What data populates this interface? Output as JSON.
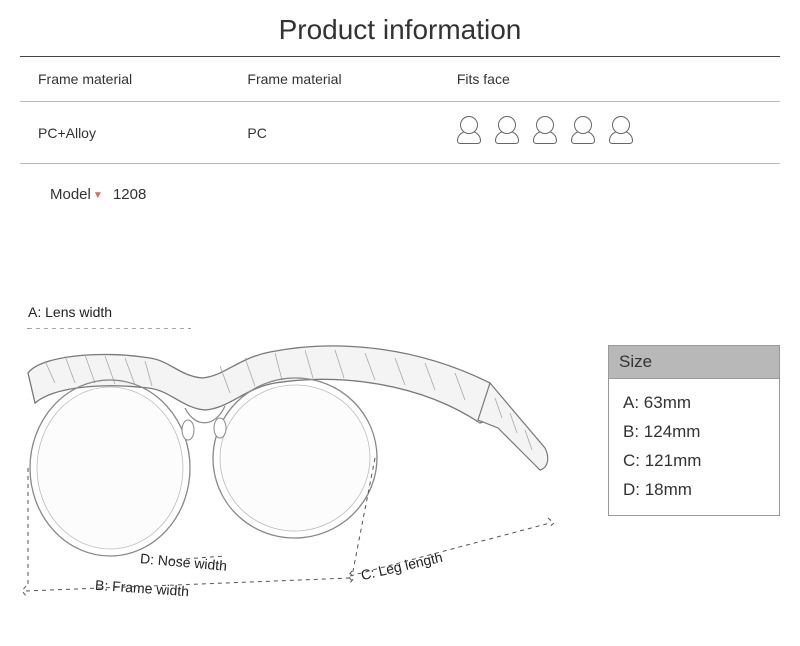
{
  "title": "Product information",
  "spec_table": {
    "headers": [
      "Frame material",
      "Frame material",
      "Fits face"
    ],
    "values": [
      "PC+Alloy",
      "PC"
    ],
    "face_icon_count": 5
  },
  "model": {
    "label": "Model",
    "value": "1208"
  },
  "diagram": {
    "labels": {
      "a": "A: Lens width",
      "b": "B: Frame width",
      "c": "C: Leg length",
      "d": "D: Nose width"
    },
    "stroke_color": "#888888",
    "dash_color": "#555555"
  },
  "size_box": {
    "header": "Size",
    "rows": [
      "A: 63mm",
      "B: 124mm",
      "C: 121mm",
      "D: 18mm"
    ],
    "header_bg": "#b8b8b8",
    "border_color": "#999999"
  },
  "colors": {
    "rule": "#444444",
    "subrule": "#bbbbbb",
    "chevron": "#d66"
  }
}
